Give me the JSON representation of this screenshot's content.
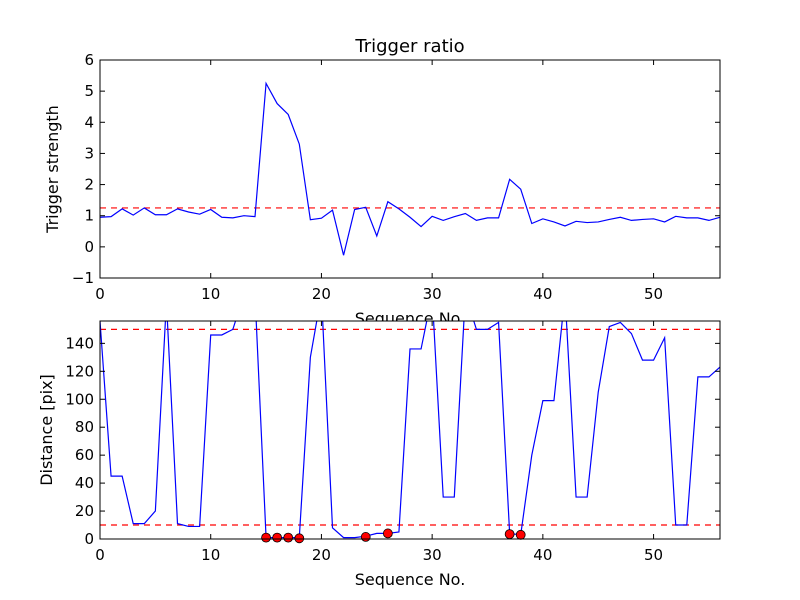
{
  "chart_data": [
    {
      "type": "line",
      "title": "Trigger ratio",
      "xlabel": "Sequence No.",
      "ylabel": "Trigger strength",
      "xlim": [
        0,
        56
      ],
      "ylim": [
        -1,
        6
      ],
      "xticks": [
        "0",
        "10",
        "20",
        "30",
        "40",
        "50"
      ],
      "yticks": [
        "−1",
        "0",
        "1",
        "2",
        "3",
        "4",
        "5",
        "6"
      ],
      "threshold_lines": [
        1.25
      ],
      "line_color": "#0000ff",
      "threshold_color": "#ff0000",
      "series": [
        {
          "x": [
            0,
            1,
            2,
            3,
            4,
            5,
            6,
            7,
            8,
            9,
            10,
            11,
            12,
            13,
            14,
            15,
            16,
            17,
            18,
            19,
            20,
            21,
            22,
            23,
            24,
            25,
            26,
            27,
            28,
            29,
            30,
            31,
            32,
            33,
            34,
            35,
            36,
            37,
            38,
            39,
            40,
            41,
            42,
            43,
            44,
            45,
            46,
            47,
            48,
            49,
            50,
            51,
            52,
            53,
            54,
            55,
            56
          ],
          "y": [
            0.95,
            0.97,
            1.22,
            1.02,
            1.25,
            1.03,
            1.03,
            1.22,
            1.12,
            1.05,
            1.2,
            0.95,
            0.93,
            1.0,
            0.97,
            5.25,
            4.6,
            4.25,
            3.3,
            0.87,
            0.92,
            1.18,
            -0.27,
            1.2,
            1.27,
            0.35,
            1.45,
            1.22,
            0.95,
            0.65,
            0.98,
            0.85,
            0.97,
            1.07,
            0.85,
            0.93,
            0.93,
            2.17,
            1.85,
            0.75,
            0.9,
            0.8,
            0.67,
            0.82,
            0.78,
            0.8,
            0.88,
            0.95,
            0.85,
            0.88,
            0.9,
            0.8,
            0.98,
            0.93,
            0.93,
            0.85,
            0.95
          ]
        }
      ]
    },
    {
      "type": "line",
      "title": "",
      "xlabel": "Sequence No.",
      "ylabel": "Distance [pix]",
      "xlim": [
        0,
        56
      ],
      "ylim": [
        0,
        156
      ],
      "xticks": [
        "0",
        "10",
        "20",
        "30",
        "40",
        "50"
      ],
      "yticks": [
        "0",
        "20",
        "40",
        "60",
        "80",
        "100",
        "120",
        "140"
      ],
      "threshold_lines": [
        10,
        150
      ],
      "line_color": "#0000ff",
      "threshold_color": "#ff0000",
      "marker_color": "#ff0000",
      "series": [
        {
          "x": [
            0,
            1,
            2,
            3,
            4,
            5,
            6,
            7,
            8,
            9,
            10,
            11,
            12,
            13,
            14,
            15,
            16,
            17,
            18,
            19,
            20,
            21,
            22,
            23,
            24,
            25,
            26,
            27,
            28,
            29,
            30,
            31,
            32,
            33,
            34,
            35,
            36,
            37,
            38,
            39,
            40,
            41,
            42,
            43,
            44,
            45,
            46,
            47,
            48,
            49,
            50,
            51,
            52,
            53,
            54,
            55,
            56
          ],
          "y": [
            156,
            45,
            45,
            11,
            11,
            20,
            170,
            11,
            9,
            9,
            146,
            146,
            150,
            175,
            175,
            1,
            1,
            1,
            1,
            130,
            175,
            8,
            1,
            1,
            2,
            4,
            4,
            5,
            136,
            136,
            175,
            30,
            30,
            175,
            150,
            150,
            155,
            4,
            3,
            60,
            99,
            99,
            175,
            30,
            30,
            105,
            152,
            155,
            147,
            128,
            128,
            144,
            10,
            10,
            116,
            116,
            123
          ]
        }
      ],
      "markers": {
        "x": [
          15,
          16,
          17,
          18,
          24,
          26,
          37,
          38
        ],
        "y": [
          1,
          1,
          1,
          0.5,
          1.5,
          4,
          3.5,
          3
        ]
      }
    }
  ]
}
